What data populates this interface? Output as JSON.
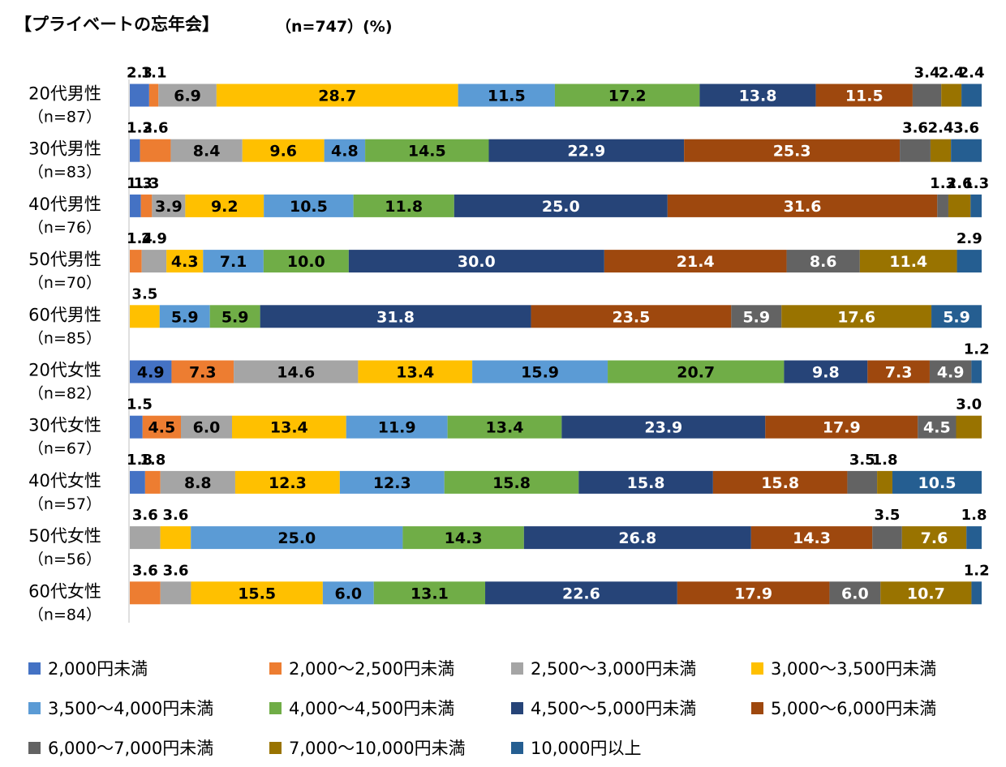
{
  "chart_data": {
    "type": "bar",
    "orientation": "horizontal",
    "stacked": "percent",
    "title": "【プライベートの忘年会】",
    "subtitle": "（n=747）(%)",
    "categories": [
      [
        "20代男性",
        "（n=87）"
      ],
      [
        "30代男性",
        "（n=83）"
      ],
      [
        "40代男性",
        "（n=76）"
      ],
      [
        "50代男性",
        "（n=70）"
      ],
      [
        "60代男性",
        "（n=85）"
      ],
      [
        "20代女性",
        "（n=82）"
      ],
      [
        "30代女性",
        "（n=67）"
      ],
      [
        "40代女性",
        "（n=57）"
      ],
      [
        "50代女性",
        "（n=56）"
      ],
      [
        "60代女性",
        "（n=84）"
      ]
    ],
    "series": [
      {
        "name": "2,000円未満",
        "color": "#4472C4",
        "values": [
          2.3,
          1.2,
          1.3,
          0,
          0,
          4.9,
          1.5,
          1.8,
          0,
          0
        ]
      },
      {
        "name": "2,000～2,500円未満",
        "color": "#ED7D31",
        "values": [
          1.1,
          3.6,
          1.3,
          1.4,
          0,
          7.3,
          4.5,
          1.8,
          0,
          3.6
        ]
      },
      {
        "name": "2,500～3,000円未満",
        "color": "#A5A5A5",
        "values": [
          6.9,
          8.4,
          3.9,
          2.9,
          0,
          14.6,
          6.0,
          8.8,
          3.6,
          3.6
        ]
      },
      {
        "name": "3,000～3,500円未満",
        "color": "#FFC000",
        "values": [
          28.7,
          9.6,
          9.2,
          4.3,
          3.5,
          13.4,
          13.4,
          12.3,
          3.6,
          15.5
        ]
      },
      {
        "name": "3,500～4,000円未満",
        "color": "#5B9BD5",
        "values": [
          11.5,
          4.8,
          10.5,
          7.1,
          5.9,
          15.9,
          11.9,
          12.3,
          25.0,
          6.0
        ]
      },
      {
        "name": "4,000～4,500円未満",
        "color": "#70AD47",
        "values": [
          17.2,
          14.5,
          11.8,
          10.0,
          5.9,
          20.7,
          13.4,
          15.8,
          14.3,
          13.1
        ]
      },
      {
        "name": "4,500～5,000円未満",
        "color": "#264478",
        "values": [
          13.8,
          22.9,
          25.0,
          30.0,
          31.8,
          9.8,
          23.9,
          15.8,
          26.8,
          22.6
        ]
      },
      {
        "name": "5,000～6,000円未満",
        "color": "#9E480E",
        "values": [
          11.5,
          25.3,
          31.6,
          21.4,
          23.5,
          7.3,
          17.9,
          15.8,
          14.3,
          17.9
        ]
      },
      {
        "name": "6,000～7,000円未満",
        "color": "#636363",
        "values": [
          3.4,
          3.6,
          1.3,
          8.6,
          5.9,
          4.9,
          4.5,
          3.5,
          3.5,
          6.0
        ]
      },
      {
        "name": "7,000～10,000円未満",
        "color": "#997300",
        "values": [
          2.4,
          2.4,
          2.6,
          11.4,
          17.6,
          0,
          3.0,
          1.8,
          7.6,
          10.7
        ]
      },
      {
        "name": "10,000円以上",
        "color": "#255E91",
        "values": [
          2.4,
          3.6,
          1.3,
          2.9,
          5.9,
          1.2,
          0,
          10.5,
          1.8,
          1.2
        ]
      }
    ],
    "xlim": [
      0,
      100
    ],
    "grid": false,
    "legend_position": "bottom"
  }
}
